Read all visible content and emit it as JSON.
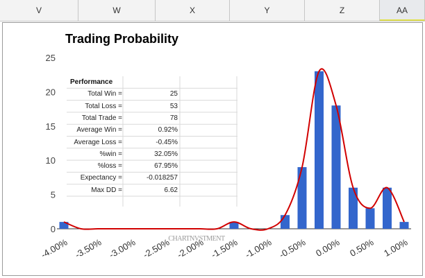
{
  "columns": [
    {
      "id": "V",
      "label": "V"
    },
    {
      "id": "W",
      "label": "W"
    },
    {
      "id": "X",
      "label": "X"
    },
    {
      "id": "Y",
      "label": "Y"
    },
    {
      "id": "Z",
      "label": "Z"
    },
    {
      "id": "AA",
      "label": "AA"
    }
  ],
  "colors": {
    "bar": "#3366cc",
    "curve": "#d10000",
    "axis": "#333333",
    "gridline": "#d9d9d9",
    "header_bg": "#f3f3f3",
    "active_header_underline": "#e0e04a"
  },
  "performance": {
    "title": "Performance",
    "rows": [
      {
        "label": "Total Win =",
        "value": "25"
      },
      {
        "label": "Total Loss =",
        "value": "53"
      },
      {
        "label": "Total Trade =",
        "value": "78"
      },
      {
        "label": "Average Win =",
        "value": "0.92%"
      },
      {
        "label": "Average Loss =",
        "value": "-0.45%"
      },
      {
        "label": "%win =",
        "value": "32.05%"
      },
      {
        "label": "%loss =",
        "value": "67.95%"
      },
      {
        "label": "Expectancy =",
        "value": "-0.018257"
      },
      {
        "label": "Max DD =",
        "value": "6.62"
      }
    ]
  },
  "chart_data": {
    "type": "bar",
    "title": "Trading Probability",
    "xlabel": "",
    "ylabel": "",
    "ylim": [
      0,
      25
    ],
    "y_ticks": [
      "0",
      "5",
      "10",
      "15",
      "20",
      "25"
    ],
    "x_ticks": [
      "-4.00%",
      "-3.50%",
      "-3.00%",
      "-2.50%",
      "-2.00%",
      "-1.50%",
      "-1.00%",
      "-0.50%",
      "0.00%",
      "0.50%",
      "1.00%"
    ],
    "categories": [
      "-4.00%",
      "-3.75%",
      "-3.50%",
      "-3.25%",
      "-3.00%",
      "-2.75%",
      "-2.50%",
      "-2.25%",
      "-2.00%",
      "-1.75%",
      "-1.50%",
      "-1.25%",
      "-1.00%",
      "-0.75%",
      "-0.50%",
      "-0.25%",
      "0.00%",
      "0.25%",
      "0.50%",
      "0.75%",
      "1.00%"
    ],
    "values": [
      1,
      0,
      0,
      0,
      0,
      0,
      0,
      0,
      0,
      0,
      1,
      0,
      0,
      2,
      9,
      23,
      18,
      6,
      3,
      6,
      1
    ],
    "trend_line": {
      "type": "smooth",
      "color": "#d10000"
    },
    "watermark": "CHARTNVSTMENT",
    "grid": false,
    "legend": "none"
  }
}
